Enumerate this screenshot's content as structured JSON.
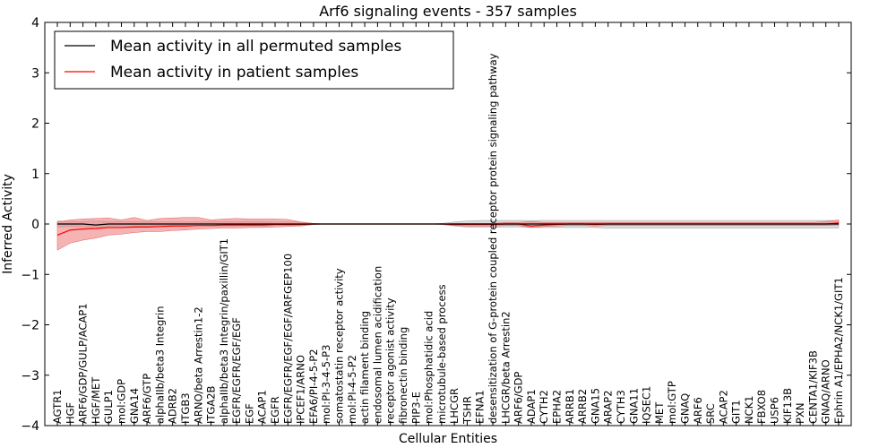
{
  "chart_data": {
    "type": "line",
    "title": "Arf6 signaling events - 357 samples",
    "xlabel": "Cellular Entities",
    "ylabel": "Inferred Activity",
    "ylim": [
      -4,
      4
    ],
    "yticks": [
      -4,
      -3,
      -2,
      -1,
      0,
      1,
      2,
      3,
      4
    ],
    "legend_position": "top-left",
    "categories": [
      "AGTR1",
      "HGF",
      "ARF6/GDP/GULP/ACAP1",
      "HGF/MET",
      "GULP1",
      "mol:GDP",
      "GNA14",
      "ARF6/GTP",
      "alphaIIb/beta3 Integrin",
      "ADRB2",
      "ITGB3",
      "ARNO/beta Arrestin1-2",
      "ITGA2B",
      "alphaIIb/beta3 Integrin/paxillin/GIT1",
      "EGFR/EGFR/EGF/EGF",
      "EGF",
      "ACAP1",
      "EGFR",
      "EGFR/EGFR/EGF/EGF/ARFGEP100",
      "IPCEF1/ARNO",
      "EFA6/PI-4-5-P2",
      "mol:PI-3-4-5-P3",
      "somatostatin receptor activity",
      "mol:PI-4-5-P2",
      "actin filament binding",
      "endosomal lumen acidification",
      "receptor agonist activity",
      "fibronectin binding",
      "PIP3-E",
      "mol:Phosphatidic acid",
      "microtubule-based process",
      "LHCGR",
      "TSHR",
      "EFNA1",
      "desensitization of G-protein coupled receptor protein signaling pathway",
      "LHCGR/beta Arrestin2",
      "ARF6/GDP",
      "ADAP1",
      "CYTH2",
      "EPHA2",
      "ARRB1",
      "ARRB2",
      "GNA15",
      "ARAP2",
      "CYTH3",
      "GNA11",
      "IQSEC1",
      "MET",
      "mol:GTP",
      "GNAQ",
      "ARF6",
      "SRC",
      "ACAP2",
      "GIT1",
      "NCK1",
      "FBXO8",
      "USP6",
      "KIF13B",
      "PXN",
      "CENTA1/KIF3B",
      "GNAQ/ARNO",
      "Ephrin A1/EPHA2/NCK1/GIT1"
    ],
    "series": [
      {
        "name": "Mean activity in all permuted samples",
        "color": "#000000",
        "values": [
          0.0,
          0.0,
          0.0,
          -0.02,
          0.0,
          0.0,
          0.0,
          0.0,
          0.0,
          0.0,
          0.0,
          0.0,
          0.0,
          0.0,
          0.0,
          0.0,
          0.0,
          0.0,
          0.0,
          0.0,
          0.0,
          0.0,
          0.0,
          0.0,
          0.0,
          0.0,
          0.0,
          0.0,
          0.0,
          0.0,
          0.0,
          0.0,
          0.0,
          0.0,
          0.0,
          0.0,
          0.0,
          0.0,
          0.0,
          0.0,
          0.0,
          0.0,
          0.0,
          0.0,
          0.0,
          0.0,
          0.0,
          0.0,
          0.0,
          0.0,
          0.0,
          0.0,
          0.0,
          0.0,
          0.0,
          0.0,
          0.0,
          0.0,
          0.0,
          0.0,
          0.0,
          0.0
        ],
        "band_low": [
          -0.06,
          -0.05,
          -0.06,
          -0.08,
          -0.05,
          -0.04,
          -0.04,
          -0.04,
          -0.03,
          -0.03,
          -0.03,
          -0.03,
          -0.04,
          -0.04,
          -0.04,
          -0.04,
          -0.04,
          -0.03,
          -0.03,
          -0.03,
          -0.01,
          0.0,
          0.0,
          0.0,
          0.0,
          0.0,
          0.0,
          0.0,
          0.0,
          0.0,
          -0.01,
          -0.04,
          -0.06,
          -0.06,
          -0.06,
          -0.06,
          -0.06,
          -0.07,
          -0.07,
          -0.07,
          -0.07,
          -0.07,
          -0.07,
          -0.08,
          -0.08,
          -0.08,
          -0.08,
          -0.08,
          -0.08,
          -0.08,
          -0.08,
          -0.08,
          -0.08,
          -0.08,
          -0.08,
          -0.08,
          -0.08,
          -0.08,
          -0.08,
          -0.08,
          -0.08,
          -0.08
        ],
        "band_high": [
          0.06,
          0.05,
          0.05,
          0.06,
          0.05,
          0.05,
          0.05,
          0.05,
          0.04,
          0.04,
          0.04,
          0.04,
          0.05,
          0.05,
          0.05,
          0.05,
          0.05,
          0.04,
          0.04,
          0.04,
          0.01,
          0.0,
          0.0,
          0.0,
          0.0,
          0.0,
          0.0,
          0.0,
          0.0,
          0.0,
          0.01,
          0.04,
          0.06,
          0.07,
          0.07,
          0.07,
          0.07,
          0.07,
          0.07,
          0.07,
          0.07,
          0.07,
          0.07,
          0.07,
          0.07,
          0.07,
          0.07,
          0.07,
          0.07,
          0.07,
          0.07,
          0.07,
          0.07,
          0.07,
          0.07,
          0.07,
          0.07,
          0.07,
          0.07,
          0.07,
          0.07,
          0.07
        ]
      },
      {
        "name": "Mean activity in patient samples",
        "color": "#ff0000",
        "values": [
          -0.22,
          -0.12,
          -0.1,
          -0.09,
          -0.07,
          -0.07,
          -0.06,
          -0.06,
          -0.05,
          -0.04,
          -0.04,
          -0.03,
          -0.03,
          -0.02,
          -0.02,
          -0.02,
          -0.02,
          -0.01,
          -0.01,
          -0.01,
          0.0,
          0.0,
          0.0,
          0.0,
          0.0,
          0.0,
          0.0,
          0.0,
          0.0,
          0.0,
          0.0,
          -0.01,
          -0.01,
          -0.01,
          -0.01,
          0.0,
          0.0,
          -0.04,
          -0.02,
          -0.01,
          0.0,
          0.0,
          -0.01,
          0.0,
          0.0,
          0.0,
          0.0,
          0.0,
          0.0,
          0.0,
          0.0,
          0.0,
          0.0,
          0.0,
          0.0,
          0.0,
          0.0,
          0.0,
          0.0,
          0.0,
          0.0,
          0.02
        ],
        "band_low": [
          -0.52,
          -0.38,
          -0.32,
          -0.28,
          -0.22,
          -0.2,
          -0.17,
          -0.15,
          -0.15,
          -0.13,
          -0.12,
          -0.1,
          -0.09,
          -0.08,
          -0.08,
          -0.07,
          -0.07,
          -0.06,
          -0.05,
          -0.04,
          -0.01,
          0.0,
          0.0,
          0.0,
          0.0,
          0.0,
          0.0,
          0.0,
          0.0,
          0.0,
          0.0,
          -0.03,
          -0.04,
          -0.04,
          -0.04,
          -0.03,
          -0.03,
          -0.07,
          -0.05,
          -0.04,
          -0.03,
          -0.03,
          -0.04,
          -0.03,
          -0.03,
          -0.03,
          -0.03,
          -0.03,
          -0.03,
          -0.03,
          -0.03,
          -0.03,
          -0.03,
          -0.03,
          -0.03,
          -0.03,
          -0.03,
          -0.03,
          -0.03,
          -0.03,
          -0.03,
          -0.02
        ],
        "band_high": [
          0.04,
          0.08,
          0.1,
          0.11,
          0.12,
          0.08,
          0.13,
          0.07,
          0.11,
          0.12,
          0.13,
          0.13,
          0.08,
          0.1,
          0.11,
          0.1,
          0.1,
          0.1,
          0.09,
          0.04,
          0.01,
          0.0,
          0.0,
          0.0,
          0.0,
          0.0,
          0.0,
          0.0,
          0.0,
          0.0,
          0.0,
          0.01,
          0.01,
          0.01,
          0.01,
          0.03,
          0.03,
          0.05,
          0.03,
          0.03,
          0.03,
          0.03,
          0.03,
          0.03,
          0.03,
          0.03,
          0.03,
          0.03,
          0.03,
          0.03,
          0.03,
          0.03,
          0.03,
          0.03,
          0.03,
          0.03,
          0.03,
          0.03,
          0.03,
          0.03,
          0.05,
          0.08
        ]
      }
    ]
  }
}
